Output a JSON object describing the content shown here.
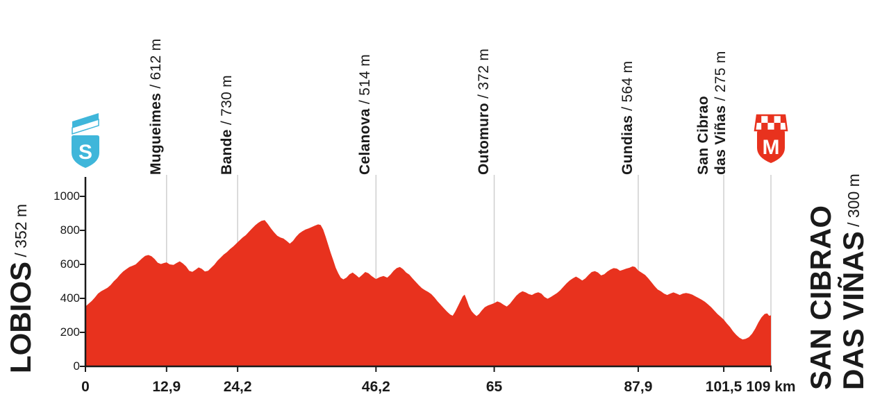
{
  "colors": {
    "profile_red": "#e8321e",
    "start_blue": "#3fb6da",
    "waypoint_line_gray": "#cfcfcf",
    "axis_black": "#1a1a1a"
  },
  "start": {
    "name": "LOBIOS",
    "elevation_label": " / 352 m",
    "marker_letter": "S"
  },
  "finish": {
    "name_line1": "SAN CIBRAO",
    "name_line2": "DAS VIÑAS",
    "elevation_label": " / 300 m",
    "marker_letter": "M"
  },
  "waypoints": [
    {
      "name": "Mugueimes",
      "elevation_label": " / 612 m",
      "km": 12.9
    },
    {
      "name": "Bande",
      "elevation_label": " / 730 m",
      "km": 24.2
    },
    {
      "name": "Celanova",
      "elevation_label": " / 514 m",
      "km": 46.2
    },
    {
      "name": "Outomuro",
      "elevation_label": " / 372 m",
      "km": 65
    },
    {
      "name": "Gundias",
      "elevation_label": " / 564 m",
      "km": 87.9
    },
    {
      "name": "San Cibrao",
      "name_line2": "das Viñas",
      "elevation_label": " / 275 m",
      "km": 101.5
    }
  ],
  "x_axis": {
    "unit": "km",
    "ticks": [
      {
        "km": 0,
        "label": "0"
      },
      {
        "km": 12.9,
        "label": "12,9"
      },
      {
        "km": 24.2,
        "label": "24,2"
      },
      {
        "km": 46.2,
        "label": "46,2"
      },
      {
        "km": 65,
        "label": "65"
      },
      {
        "km": 87.9,
        "label": "87,9"
      },
      {
        "km": 101.5,
        "label": "101,5"
      },
      {
        "km": 109,
        "label": "109 km"
      }
    ]
  },
  "y_axis": {
    "ticks": [
      0,
      200,
      400,
      600,
      800,
      1000
    ]
  },
  "chart_data": {
    "type": "area",
    "title": "Lobios – San Cibrao das Viñas stage elevation profile",
    "xlabel": "km",
    "ylabel": "m",
    "xlim": [
      0,
      109
    ],
    "ylim": [
      0,
      1000
    ],
    "grid": false,
    "x_ticks": [
      0,
      12.9,
      24.2,
      46.2,
      65,
      87.9,
      101.5,
      109
    ],
    "y_ticks": [
      0,
      200,
      400,
      600,
      800,
      1000
    ],
    "start": {
      "name": "Lobios",
      "km": 0,
      "elevation_m": 352
    },
    "finish": {
      "name": "San Cibrao das Viñas",
      "km": 109,
      "elevation_m": 300
    },
    "waypoints": [
      {
        "name": "Mugueimes",
        "km": 12.9,
        "elevation_m": 612
      },
      {
        "name": "Bande",
        "km": 24.2,
        "elevation_m": 730
      },
      {
        "name": "Celanova",
        "km": 46.2,
        "elevation_m": 514
      },
      {
        "name": "Outomuro",
        "km": 65,
        "elevation_m": 372
      },
      {
        "name": "Gundias",
        "km": 87.9,
        "elevation_m": 564
      },
      {
        "name": "San Cibrao das Viñas",
        "km": 101.5,
        "elevation_m": 275
      }
    ],
    "profile": [
      [
        0,
        352
      ],
      [
        0.5,
        368
      ],
      [
        1,
        385
      ],
      [
        1.5,
        405
      ],
      [
        2,
        428
      ],
      [
        2.5,
        442
      ],
      [
        3,
        452
      ],
      [
        3.5,
        462
      ],
      [
        4,
        478
      ],
      [
        4.5,
        500
      ],
      [
        5,
        518
      ],
      [
        5.5,
        540
      ],
      [
        6,
        558
      ],
      [
        6.5,
        572
      ],
      [
        7,
        585
      ],
      [
        7.5,
        592
      ],
      [
        8,
        600
      ],
      [
        8.5,
        618
      ],
      [
        9,
        635
      ],
      [
        9.5,
        650
      ],
      [
        10,
        655
      ],
      [
        10.5,
        648
      ],
      [
        11,
        632
      ],
      [
        11.5,
        610
      ],
      [
        12,
        602
      ],
      [
        12.5,
        608
      ],
      [
        12.9,
        612
      ],
      [
        13.4,
        600
      ],
      [
        14,
        597
      ],
      [
        14.5,
        608
      ],
      [
        15,
        618
      ],
      [
        15.5,
        605
      ],
      [
        16,
        588
      ],
      [
        16.5,
        562
      ],
      [
        17,
        556
      ],
      [
        17.5,
        568
      ],
      [
        18,
        582
      ],
      [
        18.5,
        574
      ],
      [
        19,
        558
      ],
      [
        19.5,
        562
      ],
      [
        20,
        580
      ],
      [
        20.5,
        598
      ],
      [
        21,
        622
      ],
      [
        21.5,
        640
      ],
      [
        22,
        658
      ],
      [
        22.5,
        672
      ],
      [
        23,
        690
      ],
      [
        23.5,
        705
      ],
      [
        24.2,
        730
      ],
      [
        25,
        758
      ],
      [
        25.5,
        772
      ],
      [
        26,
        792
      ],
      [
        26.5,
        812
      ],
      [
        27,
        830
      ],
      [
        27.5,
        845
      ],
      [
        28,
        856
      ],
      [
        28.5,
        860
      ],
      [
        29,
        838
      ],
      [
        29.5,
        812
      ],
      [
        30,
        788
      ],
      [
        30.5,
        768
      ],
      [
        31,
        758
      ],
      [
        31.5,
        752
      ],
      [
        32,
        738
      ],
      [
        32.5,
        722
      ],
      [
        33,
        738
      ],
      [
        33.5,
        762
      ],
      [
        34,
        782
      ],
      [
        34.5,
        795
      ],
      [
        35,
        805
      ],
      [
        35.5,
        812
      ],
      [
        36,
        820
      ],
      [
        36.5,
        828
      ],
      [
        37,
        835
      ],
      [
        37.4,
        832
      ],
      [
        37.8,
        805
      ],
      [
        38.2,
        762
      ],
      [
        38.6,
        715
      ],
      [
        39,
        668
      ],
      [
        39.4,
        625
      ],
      [
        39.8,
        580
      ],
      [
        40.2,
        548
      ],
      [
        40.6,
        522
      ],
      [
        41,
        512
      ],
      [
        41.5,
        522
      ],
      [
        42,
        542
      ],
      [
        42.5,
        552
      ],
      [
        43,
        538
      ],
      [
        43.5,
        522
      ],
      [
        44,
        538
      ],
      [
        44.5,
        555
      ],
      [
        45,
        548
      ],
      [
        45.5,
        532
      ],
      [
        46.2,
        514
      ],
      [
        46.8,
        525
      ],
      [
        47.4,
        532
      ],
      [
        48,
        522
      ],
      [
        48.5,
        540
      ],
      [
        49,
        562
      ],
      [
        49.5,
        578
      ],
      [
        50,
        585
      ],
      [
        50.5,
        572
      ],
      [
        51,
        552
      ],
      [
        51.5,
        540
      ],
      [
        52,
        518
      ],
      [
        52.5,
        498
      ],
      [
        53,
        478
      ],
      [
        53.5,
        460
      ],
      [
        54,
        448
      ],
      [
        54.5,
        438
      ],
      [
        55,
        425
      ],
      [
        55.5,
        405
      ],
      [
        56,
        382
      ],
      [
        56.5,
        362
      ],
      [
        57,
        342
      ],
      [
        57.5,
        322
      ],
      [
        58,
        305
      ],
      [
        58.4,
        298
      ],
      [
        58.8,
        322
      ],
      [
        59.2,
        352
      ],
      [
        59.6,
        382
      ],
      [
        60,
        412
      ],
      [
        60.3,
        422
      ],
      [
        60.7,
        385
      ],
      [
        61,
        352
      ],
      [
        61.4,
        325
      ],
      [
        61.8,
        308
      ],
      [
        62.2,
        296
      ],
      [
        62.6,
        308
      ],
      [
        63,
        328
      ],
      [
        63.5,
        348
      ],
      [
        64,
        358
      ],
      [
        64.5,
        365
      ],
      [
        65,
        372
      ],
      [
        65.5,
        382
      ],
      [
        66,
        375
      ],
      [
        66.5,
        362
      ],
      [
        67,
        352
      ],
      [
        67.5,
        368
      ],
      [
        68,
        392
      ],
      [
        68.5,
        415
      ],
      [
        69,
        432
      ],
      [
        69.5,
        442
      ],
      [
        70,
        435
      ],
      [
        70.5,
        425
      ],
      [
        71,
        420
      ],
      [
        71.5,
        430
      ],
      [
        72,
        436
      ],
      [
        72.5,
        428
      ],
      [
        73,
        408
      ],
      [
        73.5,
        398
      ],
      [
        74,
        408
      ],
      [
        74.5,
        420
      ],
      [
        75,
        432
      ],
      [
        75.5,
        448
      ],
      [
        76,
        468
      ],
      [
        76.5,
        488
      ],
      [
        77,
        505
      ],
      [
        77.5,
        518
      ],
      [
        78,
        528
      ],
      [
        78.5,
        518
      ],
      [
        79,
        505
      ],
      [
        79.5,
        518
      ],
      [
        80,
        538
      ],
      [
        80.5,
        555
      ],
      [
        81,
        560
      ],
      [
        81.5,
        552
      ],
      [
        82,
        535
      ],
      [
        82.5,
        542
      ],
      [
        83,
        558
      ],
      [
        83.5,
        570
      ],
      [
        84,
        578
      ],
      [
        84.5,
        575
      ],
      [
        85,
        562
      ],
      [
        85.5,
        568
      ],
      [
        86,
        575
      ],
      [
        86.5,
        580
      ],
      [
        87,
        588
      ],
      [
        87.4,
        585
      ],
      [
        87.9,
        564
      ],
      [
        88.4,
        552
      ],
      [
        89,
        538
      ],
      [
        89.5,
        518
      ],
      [
        90,
        495
      ],
      [
        90.5,
        472
      ],
      [
        91,
        452
      ],
      [
        91.5,
        442
      ],
      [
        92,
        428
      ],
      [
        92.5,
        420
      ],
      [
        93,
        428
      ],
      [
        93.5,
        435
      ],
      [
        94,
        428
      ],
      [
        94.5,
        420
      ],
      [
        95,
        428
      ],
      [
        95.5,
        432
      ],
      [
        96,
        428
      ],
      [
        96.5,
        422
      ],
      [
        97,
        412
      ],
      [
        97.5,
        402
      ],
      [
        98,
        392
      ],
      [
        98.5,
        380
      ],
      [
        99,
        365
      ],
      [
        99.5,
        348
      ],
      [
        100,
        328
      ],
      [
        100.5,
        308
      ],
      [
        101,
        292
      ],
      [
        101.5,
        275
      ],
      [
        102,
        252
      ],
      [
        102.5,
        232
      ],
      [
        103,
        205
      ],
      [
        103.5,
        185
      ],
      [
        104,
        168
      ],
      [
        104.5,
        158
      ],
      [
        105,
        162
      ],
      [
        105.5,
        172
      ],
      [
        106,
        192
      ],
      [
        106.5,
        222
      ],
      [
        107,
        258
      ],
      [
        107.5,
        288
      ],
      [
        108,
        308
      ],
      [
        108.4,
        312
      ],
      [
        108.7,
        298
      ],
      [
        109,
        300
      ]
    ]
  }
}
